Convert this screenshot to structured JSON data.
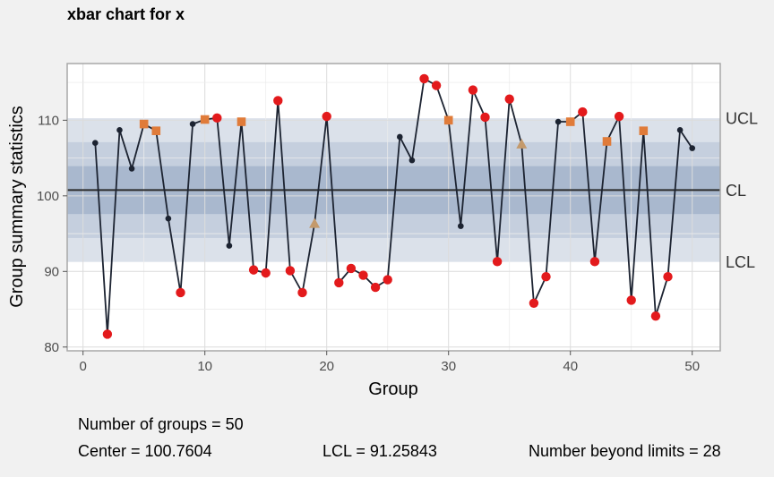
{
  "chart_data": {
    "type": "line",
    "title": "xbar chart for x",
    "xlabel": "Group",
    "ylabel": "Group summary statistics",
    "xlim": [
      -1.3,
      52.3
    ],
    "ylim": [
      79.5,
      117.5
    ],
    "xticks": [
      0,
      10,
      20,
      30,
      40,
      50
    ],
    "yticks": [
      80,
      90,
      100,
      110
    ],
    "grid": true,
    "limits": [
      {
        "label": "UCL",
        "value": 110.2625
      },
      {
        "label": "CL",
        "value": 100.7604
      },
      {
        "label": "LCL",
        "value": 91.25843
      }
    ],
    "bands": [
      {
        "low": 91.25843,
        "high": 110.2625,
        "color": "#dbe1ea"
      },
      {
        "low": 94.4258,
        "high": 107.095,
        "color": "#c5cfde"
      },
      {
        "low": 97.5931,
        "high": 103.9277,
        "color": "#a9b8ce"
      }
    ],
    "x": [
      1,
      2,
      3,
      4,
      5,
      6,
      7,
      8,
      9,
      10,
      11,
      12,
      13,
      14,
      15,
      16,
      17,
      18,
      19,
      20,
      21,
      22,
      23,
      24,
      25,
      26,
      27,
      28,
      29,
      30,
      31,
      32,
      33,
      34,
      35,
      36,
      37,
      38,
      39,
      40,
      41,
      42,
      43,
      44,
      45,
      46,
      47,
      48,
      49,
      50
    ],
    "y": [
      107.0,
      81.7,
      108.7,
      103.6,
      109.5,
      108.6,
      97.0,
      87.2,
      109.5,
      110.1,
      110.3,
      93.4,
      109.8,
      90.2,
      89.8,
      112.6,
      90.1,
      87.2,
      96.3,
      110.5,
      88.5,
      90.4,
      89.5,
      87.9,
      88.9,
      107.8,
      104.7,
      115.5,
      114.6,
      110.0,
      96.0,
      114.0,
      110.4,
      91.3,
      112.8,
      106.8,
      85.8,
      89.3,
      109.8,
      109.8,
      111.1,
      91.3,
      107.2,
      110.5,
      86.2,
      108.6,
      84.1,
      89.3,
      108.7,
      106.3
    ],
    "point_types": [
      "n",
      "r",
      "n",
      "n",
      "o",
      "o",
      "n",
      "r",
      "n",
      "o",
      "r",
      "n",
      "o",
      "r",
      "r",
      "r",
      "r",
      "r",
      "t",
      "r",
      "r",
      "r",
      "r",
      "r",
      "r",
      "n",
      "n",
      "r",
      "r",
      "o",
      "n",
      "r",
      "r",
      "r",
      "r",
      "t",
      "r",
      "r",
      "n",
      "o",
      "r",
      "r",
      "o",
      "r",
      "r",
      "o",
      "r",
      "r",
      "n",
      "n"
    ],
    "colors": {
      "normal": "#1c2331",
      "beyond": "#e31a1c",
      "violating": "#e07b39",
      "zone_rule": "#c49a6c",
      "line": "#1c2331",
      "center_line": "#2b2b2b"
    }
  },
  "stats": {
    "groups": "Number of groups = 50",
    "center": "Center = 100.7604",
    "lcl": "LCL = 91.25843",
    "beyond": "Number beyond limits = 28"
  }
}
